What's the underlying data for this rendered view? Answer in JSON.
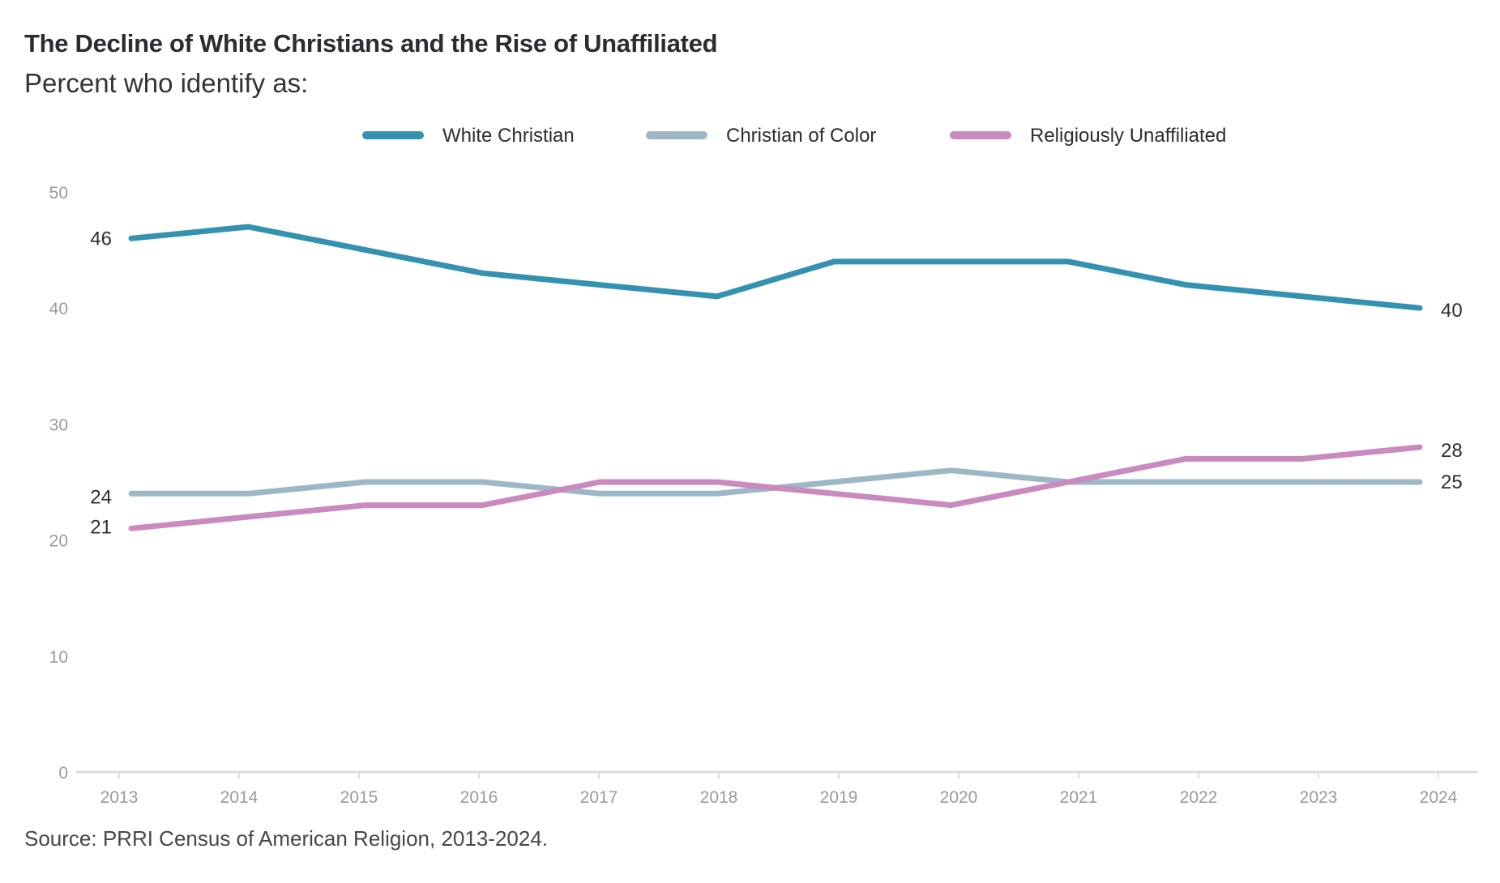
{
  "header": {
    "title": "The Decline of White Christians and the Rise of Unaffiliated",
    "subtitle": "Percent who identify as:"
  },
  "footer": {
    "source": "Source: PRRI Census of American Religion, 2013-2024."
  },
  "chart_data": {
    "type": "line",
    "title": "The Decline of White Christians and the Rise of Unaffiliated",
    "subtitle": "Percent who identify as:",
    "xlabel": "",
    "ylabel": "",
    "x": [
      "2013",
      "2014",
      "2015",
      "2016",
      "2017",
      "2018",
      "2019",
      "2020",
      "2021",
      "2022",
      "2023",
      "2024"
    ],
    "yticks": [
      "0",
      "10",
      "20",
      "30",
      "40",
      "50"
    ],
    "ylim": [
      0,
      50
    ],
    "grid": false,
    "legend_position": "top-center",
    "series": [
      {
        "name": "White Christian",
        "color": "#3492b0",
        "values": [
          46,
          47,
          45,
          43,
          42,
          41,
          44,
          44,
          44,
          42,
          41,
          40
        ],
        "start_label": "46",
        "end_label": "40"
      },
      {
        "name": "Christian of Color",
        "color": "#9db7c6",
        "values": [
          24,
          24,
          25,
          25,
          24,
          24,
          25,
          26,
          25,
          25,
          25,
          25
        ],
        "start_label": "24",
        "end_label": "25"
      },
      {
        "name": "Religiously Unaffiliated",
        "color": "#c98bbf",
        "values": [
          21,
          22,
          23,
          23,
          25,
          25,
          24,
          23,
          25,
          27,
          27,
          28
        ],
        "start_label": "21",
        "end_label": "28"
      }
    ],
    "source": "Source: PRRI Census of American Religion, 2013-2024."
  }
}
